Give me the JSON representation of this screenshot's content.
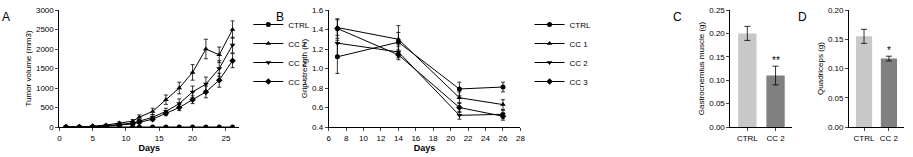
{
  "chart_data": [
    {
      "panel": "A",
      "type": "line",
      "x_label": "Days",
      "y_label": "Tumor volume (mm3)",
      "x": [
        1,
        3,
        5,
        7,
        9,
        11,
        12,
        14,
        16,
        18,
        20,
        22,
        24,
        26
      ],
      "xlim": [
        0,
        27
      ],
      "xticks": [
        0,
        5,
        10,
        15,
        20,
        25
      ],
      "ylim": [
        0,
        3000
      ],
      "yticks": [
        0,
        500,
        1000,
        1500,
        2000,
        2500,
        3000
      ],
      "legend": "right",
      "series": [
        {
          "name": "CTRL",
          "color": "#000000",
          "marker": "circle",
          "line_style": "solid",
          "values": [
            0,
            0,
            0,
            0,
            0,
            0,
            0,
            0,
            0,
            0,
            0,
            0,
            0,
            0
          ],
          "errors": [
            0,
            0,
            0,
            0,
            0,
            0,
            0,
            0,
            0,
            0,
            0,
            0,
            0,
            0
          ]
        },
        {
          "name": "CC 1",
          "color": "#000000",
          "marker": "triangle-up",
          "line_style": "solid",
          "values": [
            0,
            0,
            20,
            50,
            100,
            150,
            250,
            400,
            700,
            1000,
            1400,
            2000,
            1850,
            2500
          ],
          "errors": [
            0,
            0,
            10,
            20,
            30,
            40,
            60,
            80,
            120,
            150,
            200,
            250,
            200,
            220
          ]
        },
        {
          "name": "CC 2",
          "color": "#000000",
          "marker": "triangle-down",
          "line_style": "solid",
          "values": [
            0,
            0,
            10,
            30,
            60,
            100,
            150,
            250,
            400,
            600,
            900,
            1100,
            1500,
            2100
          ],
          "errors": [
            0,
            0,
            5,
            10,
            20,
            30,
            40,
            60,
            80,
            120,
            150,
            180,
            200,
            200
          ]
        },
        {
          "name": "CC 3",
          "color": "#000000",
          "marker": "diamond",
          "line_style": "solid",
          "values": [
            0,
            0,
            10,
            20,
            50,
            80,
            120,
            200,
            350,
            500,
            700,
            900,
            1200,
            1700
          ],
          "errors": [
            0,
            0,
            5,
            10,
            15,
            20,
            30,
            40,
            60,
            80,
            100,
            150,
            180,
            180
          ]
        }
      ]
    },
    {
      "panel": "B",
      "type": "line",
      "x_label": "Days",
      "y_label": "Grip strength (N)",
      "x": [
        7,
        14,
        21,
        26
      ],
      "xlim": [
        6,
        28
      ],
      "xticks": [
        6,
        8,
        10,
        12,
        14,
        16,
        18,
        20,
        22,
        24,
        26,
        28
      ],
      "ylim": [
        0.4,
        1.6
      ],
      "yticks": [
        0.4,
        0.6,
        0.8,
        {
          "value": 1,
          "label": "1.0"
        },
        1.2,
        1.4,
        1.6
      ],
      "legend": "right",
      "series": [
        {
          "name": "CTRL",
          "color": "#000000",
          "marker": "circle",
          "line_style": "solid",
          "values": [
            1.12,
            1.27,
            0.79,
            0.81
          ],
          "errors": [
            0.17,
            0.1,
            0.07,
            0.05
          ]
        },
        {
          "name": "CC 1",
          "color": "#000000",
          "marker": "triangle-up",
          "line_style": "solid",
          "values": [
            1.42,
            1.3,
            0.7,
            0.63
          ],
          "errors": [
            0.08,
            0.14,
            0.06,
            0.05
          ]
        },
        {
          "name": "CC 2",
          "color": "#000000",
          "marker": "triangle-down",
          "line_style": "solid",
          "values": [
            1.26,
            1.17,
            0.52,
            0.53
          ],
          "errors": [
            0.13,
            0.06,
            0.04,
            0.04
          ]
        },
        {
          "name": "CC 3",
          "color": "#000000",
          "marker": "diamond",
          "line_style": "solid",
          "values": [
            1.41,
            1.14,
            0.6,
            0.51
          ],
          "errors": [
            0.1,
            0.05,
            0.05,
            0.04
          ]
        }
      ]
    },
    {
      "panel": "C",
      "type": "bar",
      "y_label": "Gastrocnemius muscle (g)",
      "categories": [
        "CTRL",
        "CC 2"
      ],
      "values": [
        0.2,
        0.11
      ],
      "errors": [
        0.015,
        0.02
      ],
      "colors": [
        "#c8c8c8",
        "#808080"
      ],
      "ylim": [
        0,
        0.25
      ],
      "yticks": [
        {
          "value": 0,
          "label": "0.00"
        },
        {
          "value": 0.05,
          "label": "0.05"
        },
        {
          "value": 0.1,
          "label": "0.10"
        },
        {
          "value": 0.15,
          "label": "0.15"
        },
        {
          "value": 0.2,
          "label": "0.20"
        },
        {
          "value": 0.25,
          "label": "0.25"
        }
      ],
      "annotations": [
        {
          "category": "CC 2",
          "text": "**"
        }
      ]
    },
    {
      "panel": "D",
      "type": "bar",
      "y_label": "Quadriceps (g)",
      "categories": [
        "CTRL",
        "CC 2"
      ],
      "values": [
        0.155,
        0.117
      ],
      "errors": [
        0.012,
        0.004
      ],
      "colors": [
        "#c8c8c8",
        "#808080"
      ],
      "ylim": [
        0,
        0.2
      ],
      "yticks": [
        {
          "value": 0,
          "label": "0.00"
        },
        {
          "value": 0.05,
          "label": "0.05"
        },
        {
          "value": 0.1,
          "label": "0.10"
        },
        {
          "value": 0.15,
          "label": "0.15"
        },
        {
          "value": 0.2,
          "label": "0.20"
        }
      ],
      "annotations": [
        {
          "category": "CC 2",
          "text": "*"
        }
      ]
    }
  ]
}
